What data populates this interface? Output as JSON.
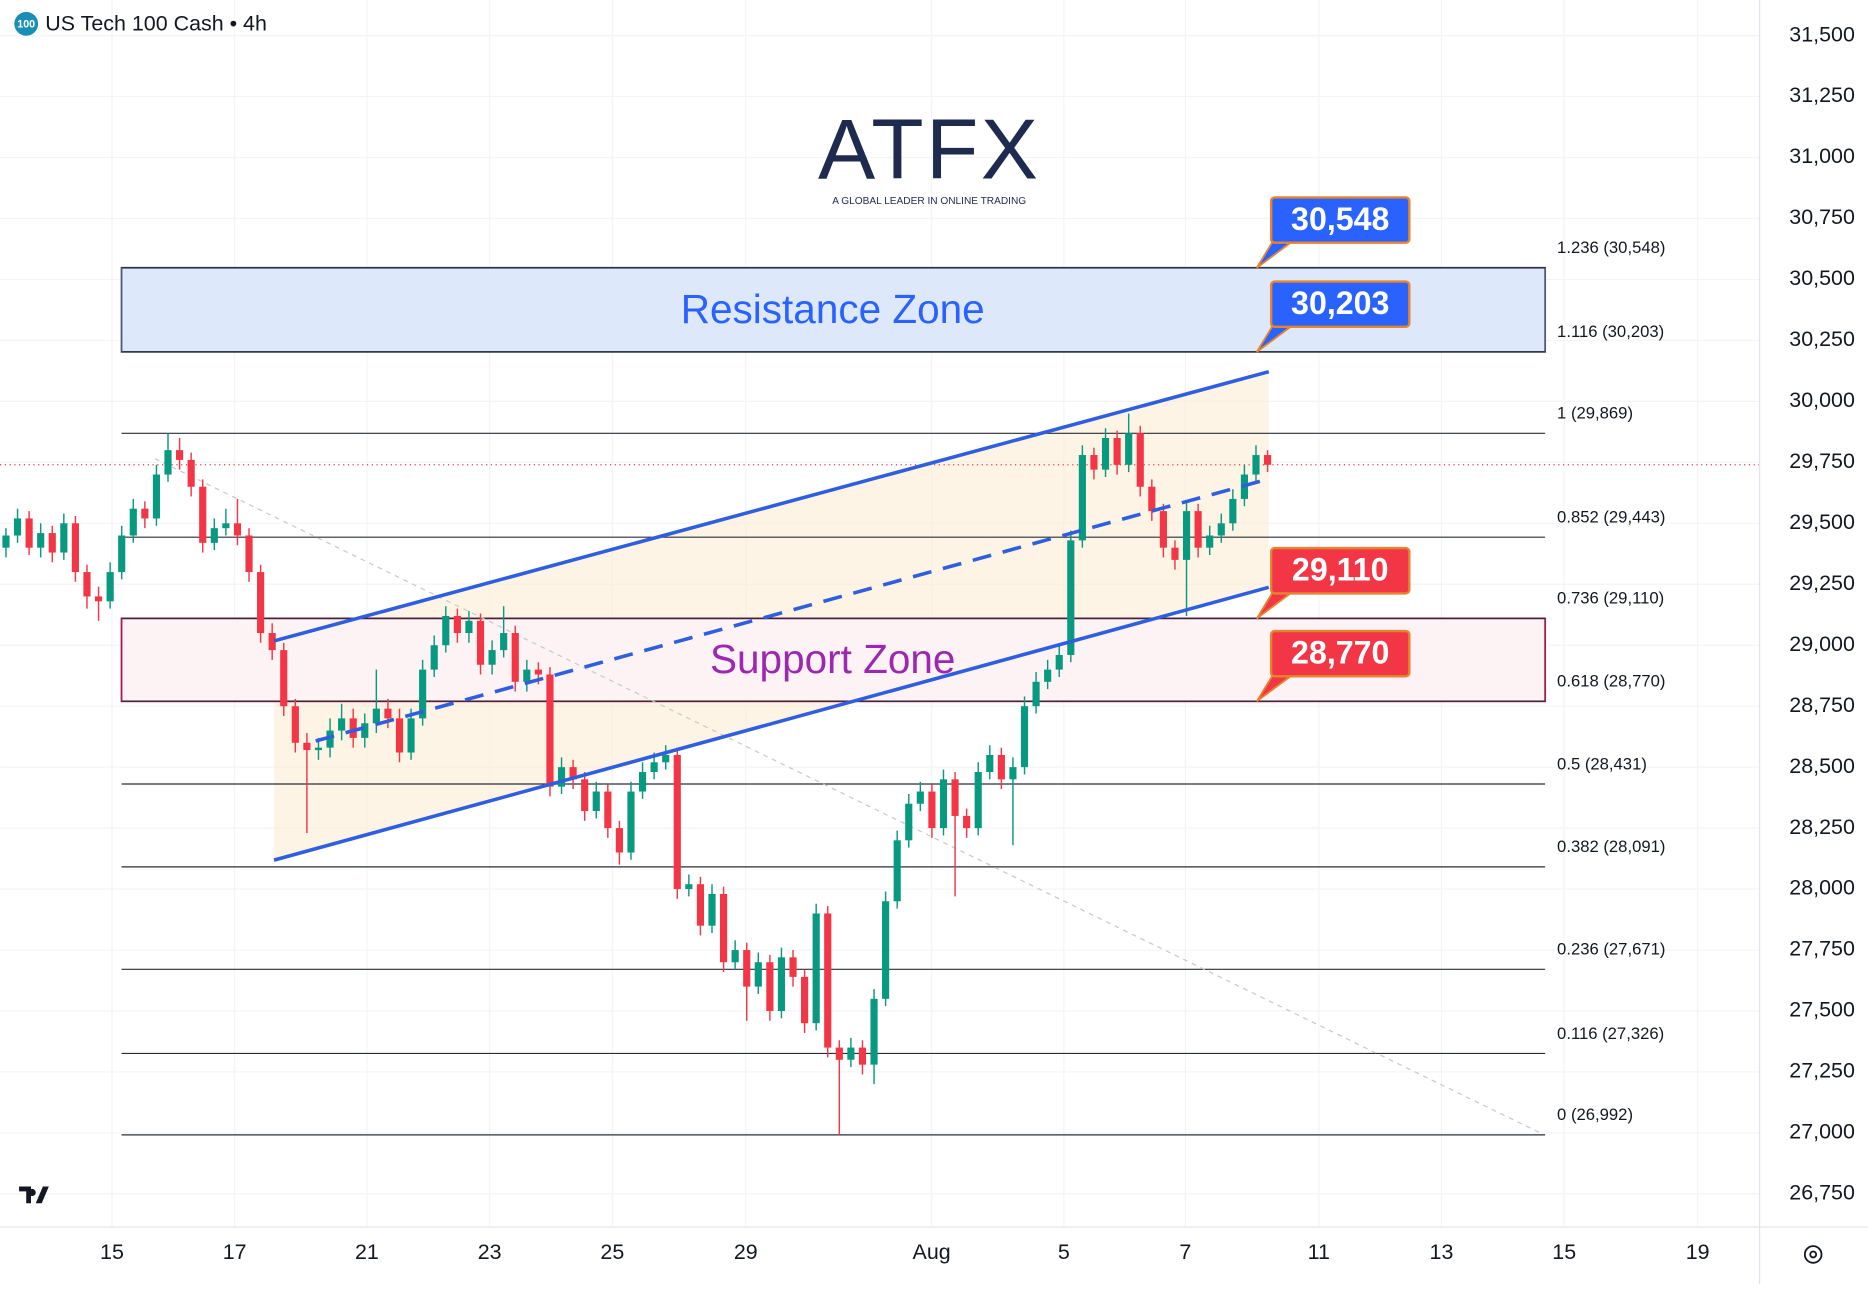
{
  "chart_data": {
    "type": "candlestick",
    "title": "US Tech 100 Cash • 4h",
    "symbol_badge": "100",
    "brand": {
      "name": "ATFX",
      "tagline": "A GLOBAL LEADER IN ONLINE TRADING"
    },
    "up_color": "#089981",
    "down_color": "#f23645",
    "ylim": [
      26614,
      31646
    ],
    "yticks": [
      {
        "value": 26750,
        "label": "26,750"
      },
      {
        "value": 27000,
        "label": "27,000"
      },
      {
        "value": 27250,
        "label": "27,250"
      },
      {
        "value": 27500,
        "label": "27,500"
      },
      {
        "value": 27750,
        "label": "27,750"
      },
      {
        "value": 28000,
        "label": "28,000"
      },
      {
        "value": 28250,
        "label": "28,250"
      },
      {
        "value": 28500,
        "label": "28,500"
      },
      {
        "value": 28750,
        "label": "28,750"
      },
      {
        "value": 29000,
        "label": "29,000"
      },
      {
        "value": 29250,
        "label": "29,250"
      },
      {
        "value": 29500,
        "label": "29,500"
      },
      {
        "value": 29750,
        "label": "29,750"
      },
      {
        "value": 30000,
        "label": "30,000"
      },
      {
        "value": 30250,
        "label": "30,250"
      },
      {
        "value": 30500,
        "label": "30,500"
      },
      {
        "value": 30750,
        "label": "30,750"
      },
      {
        "value": 31000,
        "label": "31,000"
      },
      {
        "value": 31250,
        "label": "31,250"
      },
      {
        "value": 31500,
        "label": "31,500"
      }
    ],
    "x_labels": [
      "15",
      "17",
      "21",
      "23",
      "25",
      "29",
      "Aug",
      "5",
      "7",
      "11",
      "13",
      "15",
      "19"
    ],
    "candles": [
      [
        29400,
        29480,
        29360,
        29450
      ],
      [
        29450,
        29560,
        29420,
        29520
      ],
      [
        29520,
        29550,
        29370,
        29400
      ],
      [
        29400,
        29500,
        29360,
        29460
      ],
      [
        29460,
        29490,
        29340,
        29380
      ],
      [
        29380,
        29540,
        29350,
        29500
      ],
      [
        29500,
        29530,
        29260,
        29300
      ],
      [
        29300,
        29330,
        29150,
        29200
      ],
      [
        29200,
        29240,
        29100,
        29180
      ],
      [
        29180,
        29340,
        29150,
        29300
      ],
      [
        29300,
        29490,
        29270,
        29450
      ],
      [
        29450,
        29600,
        29420,
        29560
      ],
      [
        29560,
        29590,
        29480,
        29520
      ],
      [
        29520,
        29740,
        29490,
        29700
      ],
      [
        29700,
        29869,
        29670,
        29800
      ],
      [
        29800,
        29850,
        29720,
        29760
      ],
      [
        29760,
        29790,
        29610,
        29650
      ],
      [
        29650,
        29680,
        29380,
        29420
      ],
      [
        29420,
        29520,
        29390,
        29480
      ],
      [
        29480,
        29560,
        29450,
        29500
      ],
      [
        29500,
        29600,
        29410,
        29450
      ],
      [
        29450,
        29480,
        29260,
        29300
      ],
      [
        29300,
        29330,
        29010,
        29050
      ],
      [
        29050,
        29090,
        28940,
        28980
      ],
      [
        28980,
        29010,
        28710,
        28750
      ],
      [
        28750,
        28780,
        28560,
        28600
      ],
      [
        28600,
        28640,
        28230,
        28570
      ],
      [
        28570,
        28620,
        28530,
        28580
      ],
      [
        28580,
        28700,
        28540,
        28650
      ],
      [
        28650,
        28760,
        28610,
        28700
      ],
      [
        28700,
        28740,
        28580,
        28620
      ],
      [
        28620,
        28720,
        28580,
        28680
      ],
      [
        28680,
        28900,
        28640,
        28740
      ],
      [
        28740,
        28780,
        28660,
        28700
      ],
      [
        28700,
        28740,
        28520,
        28560
      ],
      [
        28560,
        28740,
        28530,
        28700
      ],
      [
        28700,
        28940,
        28670,
        28900
      ],
      [
        28900,
        29040,
        28870,
        29000
      ],
      [
        29000,
        29160,
        28970,
        29120
      ],
      [
        29120,
        29150,
        29010,
        29050
      ],
      [
        29050,
        29140,
        29010,
        29100
      ],
      [
        29100,
        29130,
        28880,
        28920
      ],
      [
        28920,
        29020,
        28880,
        28980
      ],
      [
        28980,
        29160,
        28950,
        29050
      ],
      [
        29050,
        29080,
        28810,
        28850
      ],
      [
        28850,
        28940,
        28810,
        28900
      ],
      [
        28900,
        28930,
        28840,
        28880
      ],
      [
        28880,
        28910,
        28380,
        28420
      ],
      [
        28420,
        28540,
        28390,
        28500
      ],
      [
        28500,
        28530,
        28410,
        28450
      ],
      [
        28450,
        28480,
        28280,
        28320
      ],
      [
        28320,
        28440,
        28290,
        28400
      ],
      [
        28400,
        28430,
        28210,
        28250
      ],
      [
        28250,
        28280,
        28100,
        28150
      ],
      [
        28150,
        28440,
        28120,
        28400
      ],
      [
        28400,
        28520,
        28370,
        28480
      ],
      [
        28480,
        28560,
        28450,
        28520
      ],
      [
        28520,
        28590,
        28490,
        28550
      ],
      [
        28550,
        28580,
        27960,
        28000
      ],
      [
        28000,
        28060,
        27970,
        28020
      ],
      [
        28020,
        28050,
        27810,
        27850
      ],
      [
        27850,
        28020,
        27820,
        27980
      ],
      [
        27980,
        28010,
        27660,
        27700
      ],
      [
        27700,
        27790,
        27670,
        27750
      ],
      [
        27750,
        27780,
        27460,
        27600
      ],
      [
        27600,
        27740,
        27570,
        27700
      ],
      [
        27700,
        27730,
        27460,
        27500
      ],
      [
        27500,
        27760,
        27470,
        27720
      ],
      [
        27720,
        27750,
        27600,
        27640
      ],
      [
        27640,
        27670,
        27410,
        27450
      ],
      [
        27450,
        27940,
        27420,
        27900
      ],
      [
        27900,
        27930,
        27310,
        27350
      ],
      [
        27350,
        27380,
        26992,
        27300
      ],
      [
        27300,
        27390,
        27270,
        27350
      ],
      [
        27350,
        27380,
        27240,
        27280
      ],
      [
        27280,
        27590,
        27200,
        27550
      ],
      [
        27550,
        27990,
        27520,
        27950
      ],
      [
        27950,
        28240,
        27920,
        28200
      ],
      [
        28200,
        28390,
        28170,
        28350
      ],
      [
        28350,
        28440,
        28320,
        28400
      ],
      [
        28400,
        28430,
        28210,
        28250
      ],
      [
        28250,
        28490,
        28220,
        28450
      ],
      [
        28450,
        28480,
        27970,
        28300
      ],
      [
        28300,
        28330,
        28210,
        28250
      ],
      [
        28250,
        28520,
        28220,
        28480
      ],
      [
        28480,
        28590,
        28450,
        28550
      ],
      [
        28550,
        28580,
        28410,
        28450
      ],
      [
        28450,
        28540,
        28180,
        28500
      ],
      [
        28500,
        28790,
        28470,
        28750
      ],
      [
        28750,
        28890,
        28720,
        28850
      ],
      [
        28850,
        28940,
        28820,
        28900
      ],
      [
        28900,
        29000,
        28870,
        28960
      ],
      [
        28960,
        29470,
        28930,
        29430
      ],
      [
        29430,
        29820,
        29400,
        29780
      ],
      [
        29780,
        29810,
        29680,
        29720
      ],
      [
        29720,
        29890,
        29690,
        29850
      ],
      [
        29850,
        29880,
        29700,
        29740
      ],
      [
        29740,
        29950,
        29710,
        29870
      ],
      [
        29870,
        29900,
        29610,
        29650
      ],
      [
        29650,
        29680,
        29510,
        29550
      ],
      [
        29550,
        29580,
        29360,
        29400
      ],
      [
        29400,
        29430,
        29310,
        29350
      ],
      [
        29350,
        29590,
        29120,
        29550
      ],
      [
        29550,
        29580,
        29360,
        29400
      ],
      [
        29400,
        29490,
        29370,
        29450
      ],
      [
        29450,
        29540,
        29420,
        29500
      ],
      [
        29500,
        29640,
        29470,
        29600
      ],
      [
        29600,
        29740,
        29570,
        29700
      ],
      [
        29700,
        29820,
        29670,
        29780
      ],
      [
        29780,
        29800,
        29710,
        29740
      ]
    ],
    "fib_levels": [
      {
        "label": "1.236 (30,548)",
        "value": 30548
      },
      {
        "label": "1.116 (30,203)",
        "value": 30203
      },
      {
        "label": "1 (29,869)",
        "value": 29869
      },
      {
        "label": "0.852 (29,443)",
        "value": 29443
      },
      {
        "label": "0.736 (29,110)",
        "value": 29110
      },
      {
        "label": "0.618 (28,770)",
        "value": 28770
      },
      {
        "label": "0.5 (28,431)",
        "value": 28431
      },
      {
        "label": "0.382 (28,091)",
        "value": 28091
      },
      {
        "label": "0.236 (27,671)",
        "value": 27671
      },
      {
        "label": "0.116 (27,326)",
        "value": 27326
      },
      {
        "label": "0 (26,992)",
        "value": 26992
      }
    ],
    "zones": [
      {
        "label": "Resistance Zone",
        "low": 30203,
        "high": 30548,
        "fill": "#dde9fb",
        "stroke": "#4a5a78",
        "text_color": "#2962ff"
      },
      {
        "label": "Support Zone",
        "low": 28770,
        "high": 29110,
        "fill": "#fdf3f5",
        "stroke": "#a8174f",
        "text_color": "#9c27b0"
      }
    ],
    "callouts": [
      {
        "value": 30548,
        "label": "30,548",
        "color": "#2962ff"
      },
      {
        "value": 30203,
        "label": "30,203",
        "color": "#2962ff"
      },
      {
        "value": 29110,
        "label": "29,110",
        "color": "#f23645"
      },
      {
        "value": 28770,
        "label": "28,770",
        "color": "#f23645"
      }
    ]
  }
}
